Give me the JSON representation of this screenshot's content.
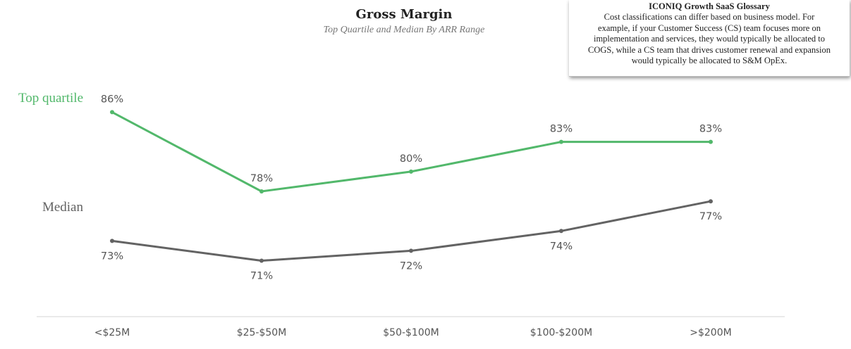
{
  "chart_data": {
    "type": "line",
    "title": "Gross Margin",
    "subtitle": "Top Quartile and Median By ARR Range",
    "categories": [
      "<$25M",
      "$25-$50M",
      "$50-$100M",
      "$100-$200M",
      ">$200M"
    ],
    "series": [
      {
        "name": "Top quartile",
        "values": [
          86,
          78,
          80,
          83,
          83
        ],
        "labels": [
          "86%",
          "78%",
          "80%",
          "83%",
          "83%"
        ],
        "color": "#52b86b"
      },
      {
        "name": "Median",
        "values": [
          73,
          71,
          72,
          74,
          77
        ],
        "labels": [
          "73%",
          "71%",
          "72%",
          "74%",
          "77%"
        ],
        "color": "#636363"
      }
    ],
    "ylim": [
      64,
      92
    ],
    "grid": false,
    "legend": "left inline labels"
  },
  "glossary": {
    "title": "ICONIQ Growth SaaS Glossary",
    "lines": [
      "Cost classifications can differ based on business model. For",
      "example, if your Customer Success (CS) team focuses more on",
      "implementation and services, they would typically be allocated to",
      "COGS, while a CS team that drives customer renewal and expansion",
      "would typically be allocated to S&M OpEx."
    ]
  }
}
